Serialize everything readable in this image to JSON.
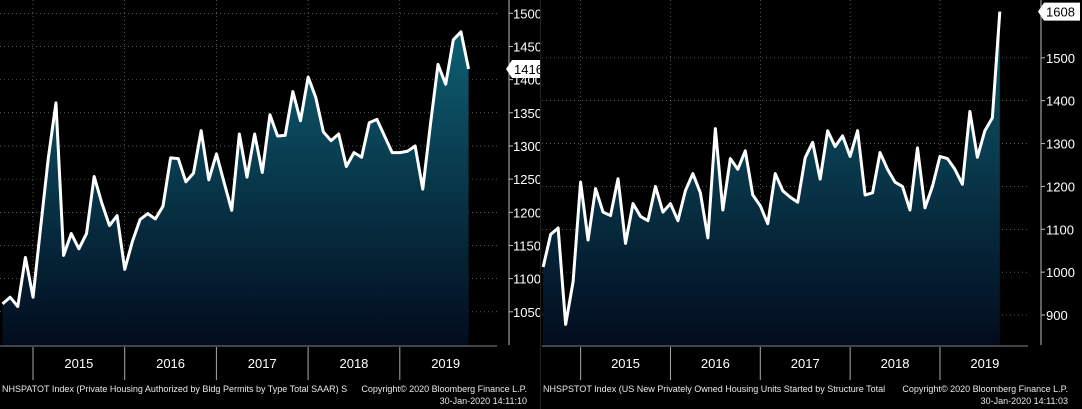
{
  "colors": {
    "background": "#000000",
    "line": "#ffffff",
    "fill_top": "#0e5f73",
    "fill_bottom": "#020c1e",
    "grid": "#ffffff",
    "last_value_badge_bg": "#ffffff",
    "last_value_badge_text": "#000000"
  },
  "panels": [
    {
      "footer": {
        "description": "NHSPATOT Index (Private Housing Authorized by Bldg Permits by Type Total SAAR) S",
        "copyright": "Copyright© 2020 Bloomberg Finance L.P.",
        "timestamp": "30-Jan-2020 14:11:10"
      }
    },
    {
      "footer": {
        "description": "NHSPSTOT Index (US New Privately Owned Housing Units Started by Structure Total",
        "copyright": "Copyright© 2020 Bloomberg Finance L.P.",
        "timestamp": "30-Jan-2020 14:11:03"
      }
    }
  ],
  "chart_data": [
    {
      "type": "area",
      "title": "NHSPATOT Index",
      "xlabel": "",
      "ylabel": "",
      "x_start": 2014.667,
      "x_step": 0.0833333,
      "xlim": [
        2014.64,
        2020.06
      ],
      "ylim": [
        1000,
        1520
      ],
      "yticks": [
        1050,
        1100,
        1150,
        1200,
        1250,
        1300,
        1350,
        1400,
        1450,
        1500
      ],
      "xticks": [
        2015,
        2016,
        2017,
        2018,
        2019
      ],
      "year_boundaries": [
        2015.0,
        2016.0,
        2017.0,
        2018.0,
        2019.0
      ],
      "last_value_label": "1416",
      "values": [
        1062,
        1072,
        1058,
        1132,
        1072,
        1178,
        1282,
        1365,
        1135,
        1168,
        1145,
        1168,
        1254,
        1214,
        1180,
        1195,
        1114,
        1156,
        1189,
        1198,
        1190,
        1209,
        1282,
        1281,
        1246,
        1259,
        1323,
        1249,
        1288,
        1245,
        1203,
        1318,
        1253,
        1318,
        1260,
        1347,
        1315,
        1316,
        1382,
        1338,
        1404,
        1373,
        1321,
        1308,
        1318,
        1269,
        1290,
        1283,
        1335,
        1340,
        1315,
        1290,
        1290,
        1292,
        1300,
        1235,
        1332,
        1423,
        1393,
        1460,
        1472,
        1416
      ]
    },
    {
      "type": "area",
      "title": "NHSPSTOT Index",
      "xlabel": "",
      "ylabel": "",
      "x_start": 2014.583,
      "x_step": 0.0833333,
      "xlim": [
        2014.57,
        2019.98
      ],
      "ylim": [
        830,
        1635
      ],
      "yticks": [
        900,
        1000,
        1100,
        1200,
        1300,
        1400,
        1500
      ],
      "xticks": [
        2015,
        2016,
        2017,
        2018,
        2019
      ],
      "year_boundaries": [
        2015.0,
        2016.0,
        2017.0,
        2018.0,
        2019.0
      ],
      "last_value_label": "1608",
      "values": [
        1012,
        1088,
        1103,
        878,
        978,
        1210,
        1075,
        1195,
        1140,
        1132,
        1218,
        1067,
        1160,
        1130,
        1120,
        1200,
        1140,
        1160,
        1120,
        1190,
        1230,
        1185,
        1080,
        1335,
        1145,
        1265,
        1240,
        1283,
        1180,
        1155,
        1113,
        1230,
        1190,
        1175,
        1163,
        1267,
        1303,
        1217,
        1330,
        1293,
        1318,
        1270,
        1330,
        1180,
        1185,
        1279,
        1240,
        1210,
        1200,
        1145,
        1290,
        1150,
        1200,
        1270,
        1265,
        1240,
        1205,
        1375,
        1268,
        1330,
        1360,
        1608
      ]
    }
  ]
}
